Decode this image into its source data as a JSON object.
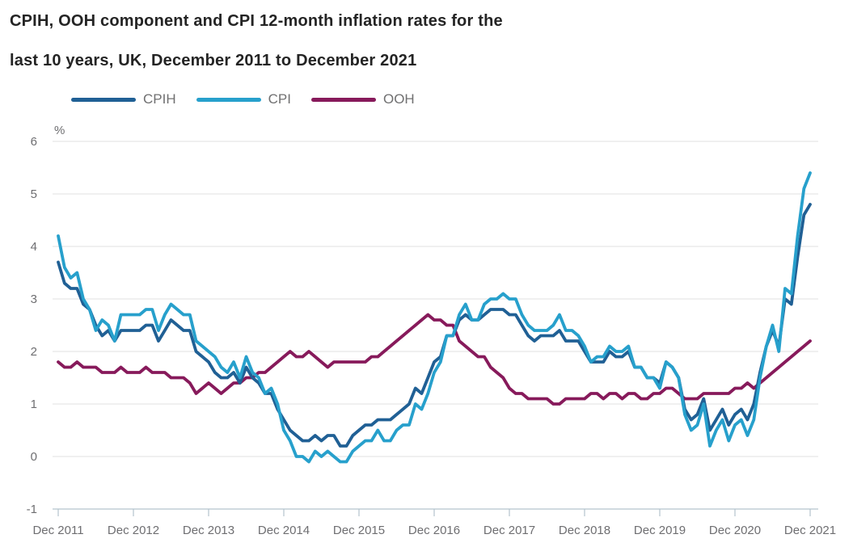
{
  "title": {
    "line1": "CPIH, OOH component and CPI 12-month inflation rates for the",
    "line2": "last 10 years, UK, December 2011 to December 2021"
  },
  "legend": [
    {
      "label": "CPIH",
      "color": "#206095"
    },
    {
      "label": "CPI",
      "color": "#27a0cc"
    },
    {
      "label": "OOH",
      "color": "#871a5b"
    }
  ],
  "colors": {
    "cpih": "#206095",
    "cpi": "#27a0cc",
    "ooh": "#871a5b",
    "gridline": "#e7e7e7",
    "axis": "#b4c3cd",
    "text_gray": "#6e6e71",
    "title": "#242424"
  },
  "chart_data": {
    "type": "line",
    "title": "CPIH, OOH component and CPI 12-month inflation rates for the last 10 years, UK, December 2011 to December 2021",
    "unit_label": "%",
    "xlabel": "",
    "ylabel": "%",
    "ylim": [
      -1,
      6
    ],
    "y_ticks": [
      -1,
      0,
      1,
      2,
      3,
      4,
      5,
      6
    ],
    "grid": "horizontal",
    "legend_position": "top",
    "x_start": "Dec 2011",
    "x_end": "Dec 2021",
    "x_frequency": "monthly",
    "x_tick_labels": [
      "Dec 2011",
      "Dec 2012",
      "Dec 2013",
      "Dec 2014",
      "Dec 2015",
      "Dec 2016",
      "Dec 2017",
      "Dec 2018",
      "Dec 2019",
      "Dec 2020",
      "Dec 2021"
    ],
    "series": [
      {
        "name": "CPIH",
        "color": "#206095",
        "values": [
          3.7,
          3.3,
          3.2,
          3.2,
          2.9,
          2.8,
          2.5,
          2.3,
          2.4,
          2.2,
          2.4,
          2.4,
          2.4,
          2.4,
          2.5,
          2.5,
          2.2,
          2.4,
          2.6,
          2.5,
          2.4,
          2.4,
          2.0,
          1.9,
          1.8,
          1.6,
          1.5,
          1.5,
          1.6,
          1.4,
          1.7,
          1.5,
          1.4,
          1.2,
          1.2,
          0.9,
          0.7,
          0.5,
          0.4,
          0.3,
          0.3,
          0.4,
          0.3,
          0.4,
          0.4,
          0.2,
          0.2,
          0.4,
          0.5,
          0.6,
          0.6,
          0.7,
          0.7,
          0.7,
          0.8,
          0.9,
          1.0,
          1.3,
          1.2,
          1.5,
          1.8,
          1.9,
          2.3,
          2.3,
          2.6,
          2.7,
          2.6,
          2.6,
          2.7,
          2.8,
          2.8,
          2.8,
          2.7,
          2.7,
          2.5,
          2.3,
          2.2,
          2.3,
          2.3,
          2.3,
          2.4,
          2.2,
          2.2,
          2.2,
          2.0,
          1.8,
          1.8,
          1.8,
          2.0,
          1.9,
          1.9,
          2.0,
          1.7,
          1.7,
          1.5,
          1.5,
          1.4,
          1.8,
          1.7,
          1.5,
          0.9,
          0.7,
          0.8,
          1.1,
          0.5,
          0.7,
          0.9,
          0.6,
          0.8,
          0.9,
          0.7,
          1.0,
          1.6,
          2.1,
          2.4,
          2.1,
          3.0,
          2.9,
          3.8,
          4.6,
          4.8
        ]
      },
      {
        "name": "CPI",
        "color": "#27a0cc",
        "values": [
          4.2,
          3.6,
          3.4,
          3.5,
          3.0,
          2.8,
          2.4,
          2.6,
          2.5,
          2.2,
          2.7,
          2.7,
          2.7,
          2.7,
          2.8,
          2.8,
          2.4,
          2.7,
          2.9,
          2.8,
          2.7,
          2.7,
          2.2,
          2.1,
          2.0,
          1.9,
          1.7,
          1.6,
          1.8,
          1.5,
          1.9,
          1.6,
          1.5,
          1.2,
          1.3,
          1.0,
          0.5,
          0.3,
          0.0,
          0.0,
          -0.1,
          0.1,
          0.0,
          0.1,
          0.0,
          -0.1,
          -0.1,
          0.1,
          0.2,
          0.3,
          0.3,
          0.5,
          0.3,
          0.3,
          0.5,
          0.6,
          0.6,
          1.0,
          0.9,
          1.2,
          1.6,
          1.8,
          2.3,
          2.3,
          2.7,
          2.9,
          2.6,
          2.6,
          2.9,
          3.0,
          3.0,
          3.1,
          3.0,
          3.0,
          2.7,
          2.5,
          2.4,
          2.4,
          2.4,
          2.5,
          2.7,
          2.4,
          2.4,
          2.3,
          2.1,
          1.8,
          1.9,
          1.9,
          2.1,
          2.0,
          2.0,
          2.1,
          1.7,
          1.7,
          1.5,
          1.5,
          1.3,
          1.8,
          1.7,
          1.5,
          0.8,
          0.5,
          0.6,
          1.0,
          0.2,
          0.5,
          0.7,
          0.3,
          0.6,
          0.7,
          0.4,
          0.7,
          1.5,
          2.1,
          2.5,
          2.0,
          3.2,
          3.1,
          4.2,
          5.1,
          5.4
        ]
      },
      {
        "name": "OOH",
        "color": "#871a5b",
        "values": [
          1.8,
          1.7,
          1.7,
          1.8,
          1.7,
          1.7,
          1.7,
          1.6,
          1.6,
          1.6,
          1.7,
          1.6,
          1.6,
          1.6,
          1.7,
          1.6,
          1.6,
          1.6,
          1.5,
          1.5,
          1.5,
          1.4,
          1.2,
          1.3,
          1.4,
          1.3,
          1.2,
          1.3,
          1.4,
          1.4,
          1.5,
          1.5,
          1.6,
          1.6,
          1.7,
          1.8,
          1.9,
          2.0,
          1.9,
          1.9,
          2.0,
          1.9,
          1.8,
          1.7,
          1.8,
          1.8,
          1.8,
          1.8,
          1.8,
          1.8,
          1.9,
          1.9,
          2.0,
          2.1,
          2.2,
          2.3,
          2.4,
          2.5,
          2.6,
          2.7,
          2.6,
          2.6,
          2.5,
          2.5,
          2.2,
          2.1,
          2.0,
          1.9,
          1.9,
          1.7,
          1.6,
          1.5,
          1.3,
          1.2,
          1.2,
          1.1,
          1.1,
          1.1,
          1.1,
          1.0,
          1.0,
          1.1,
          1.1,
          1.1,
          1.1,
          1.2,
          1.2,
          1.1,
          1.2,
          1.2,
          1.1,
          1.2,
          1.2,
          1.1,
          1.1,
          1.2,
          1.2,
          1.3,
          1.3,
          1.2,
          1.1,
          1.1,
          1.1,
          1.2,
          1.2,
          1.2,
          1.2,
          1.2,
          1.3,
          1.3,
          1.4,
          1.3,
          1.4,
          1.5,
          1.6,
          1.7,
          1.8,
          1.9,
          2.0,
          2.1,
          2.2
        ]
      }
    ]
  }
}
